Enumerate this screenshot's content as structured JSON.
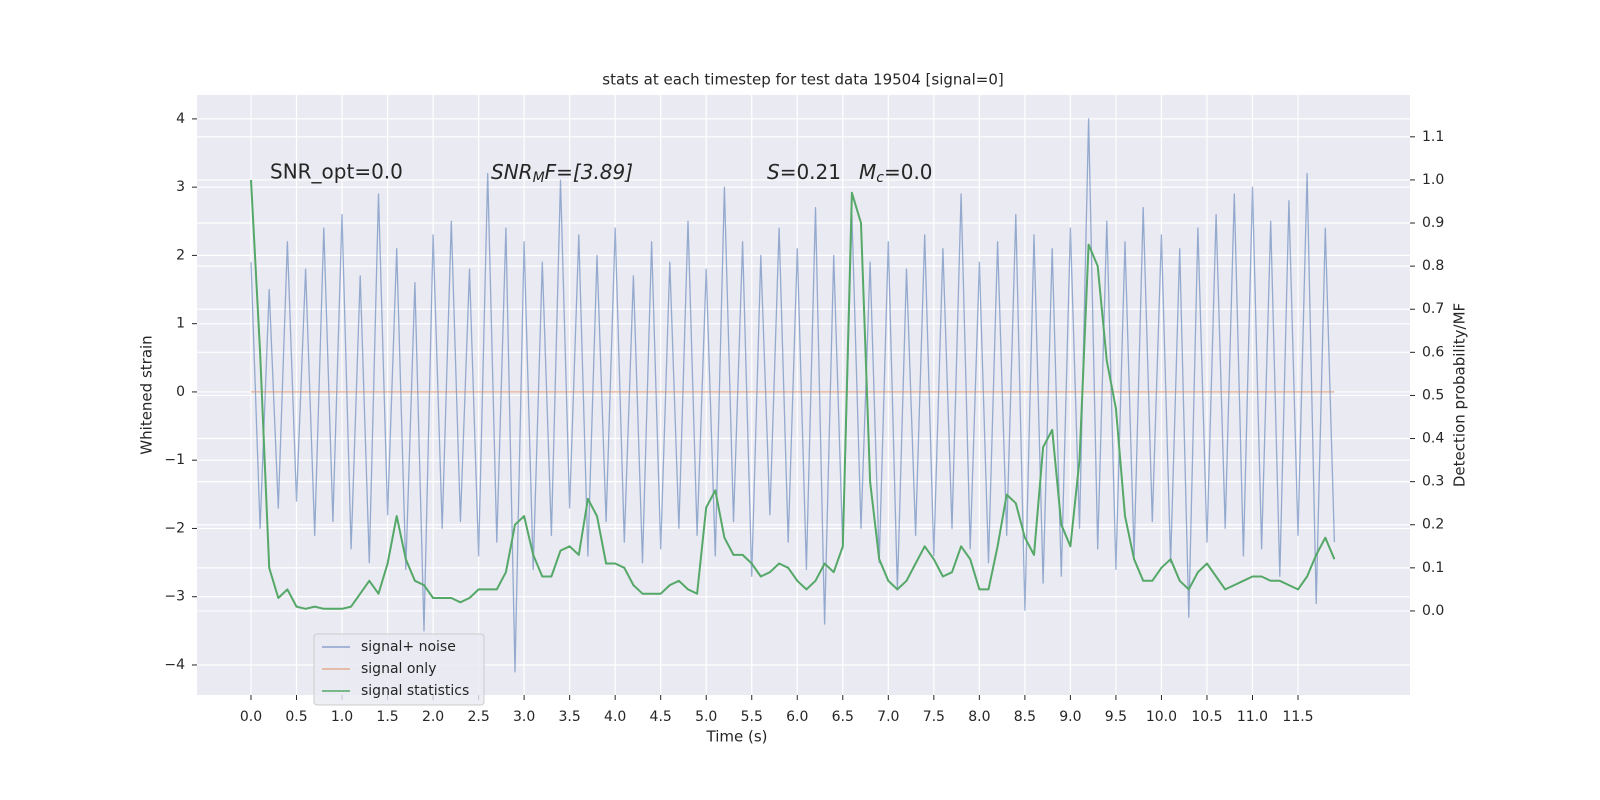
{
  "chart_data": {
    "type": "line",
    "title": "stats at each timestep for test data 19504 [signal=0]",
    "x_label": "Time (s)",
    "y_label": "Whitened strain",
    "y2_label": "Detection probability/MF",
    "annotations": [
      {
        "text": "SNR_opt=0.0"
      },
      {
        "parts": [
          "SNR",
          "M",
          "F=[3.89]"
        ]
      },
      {
        "parts": [
          "S",
          "=0.21"
        ]
      },
      {
        "parts": [
          "M",
          "c",
          "=0.0"
        ]
      }
    ],
    "xlim": [
      -0.593,
      12.73
    ],
    "ylim": [
      -4.44,
      4.35
    ],
    "y2lim": [
      -0.195,
      1.197
    ],
    "xticks": [
      {
        "value": 0,
        "label": "0.0"
      },
      0.5,
      {
        "value": 1,
        "label": "1.0"
      },
      1.5,
      {
        "value": 2,
        "label": "2.0"
      },
      2.5,
      {
        "value": 3,
        "label": "3.0"
      },
      3.5,
      {
        "value": 4,
        "label": "4.0"
      },
      4.5,
      {
        "value": 5,
        "label": "5.0"
      },
      5.5,
      {
        "value": 6,
        "label": "6.0"
      },
      6.5,
      {
        "value": 7,
        "label": "7.0"
      },
      7.5,
      {
        "value": 8,
        "label": "8.0"
      },
      8.5,
      {
        "value": 9,
        "label": "9.0"
      },
      9.5,
      {
        "value": 10,
        "label": "10.0"
      },
      10.5,
      {
        "value": 11,
        "label": "11.0"
      },
      11.5
    ],
    "yticks": [
      {
        "value": -4,
        "label": "−4"
      },
      {
        "value": -3,
        "label": "−3"
      },
      {
        "value": -2,
        "label": "−2"
      },
      {
        "value": -1,
        "label": "−1"
      },
      0,
      1,
      2,
      3,
      4
    ],
    "y2ticks": [
      {
        "value": 0,
        "label": "0.0"
      },
      0.1,
      0.2,
      0.3,
      0.4,
      0.5,
      0.6,
      0.7,
      0.8,
      0.9,
      {
        "value": 1,
        "label": "1.0"
      },
      1.1
    ],
    "grid": true,
    "legend": "lower left",
    "x": [
      0.0,
      0.1,
      0.2,
      0.3,
      0.4,
      0.5,
      0.6,
      0.7,
      0.8,
      0.9,
      1.0,
      1.1,
      1.2,
      1.3,
      1.4,
      1.5,
      1.6,
      1.7,
      1.8,
      1.9,
      2.0,
      2.1,
      2.2,
      2.3,
      2.4,
      2.5,
      2.6,
      2.7,
      2.8,
      2.9,
      3.0,
      3.1,
      3.2,
      3.3,
      3.4,
      3.5,
      3.6,
      3.7,
      3.8,
      3.9,
      4.0,
      4.1,
      4.2,
      4.3,
      4.4,
      4.5,
      4.6,
      4.7,
      4.8,
      4.9,
      5.0,
      5.1,
      5.2,
      5.3,
      5.4,
      5.5,
      5.6,
      5.7,
      5.8,
      5.9,
      6.0,
      6.1,
      6.2,
      6.3,
      6.4,
      6.5,
      6.6,
      6.7,
      6.8,
      6.9,
      7.0,
      7.1,
      7.2,
      7.3,
      7.4,
      7.5,
      7.6,
      7.7,
      7.8,
      7.9,
      8.0,
      8.1,
      8.2,
      8.3,
      8.4,
      8.5,
      8.6,
      8.7,
      8.8,
      8.9,
      9.0,
      9.1,
      9.2,
      9.3,
      9.4,
      9.5,
      9.6,
      9.7,
      9.8,
      9.9,
      10.0,
      10.1,
      10.2,
      10.3,
      10.4,
      10.5,
      10.6,
      10.7,
      10.8,
      10.9,
      11.0,
      11.1,
      11.2,
      11.3,
      11.4,
      11.5,
      11.6,
      11.7,
      11.8,
      11.9
    ],
    "series": [
      {
        "name": "signal+ noise",
        "color": "#4c72b0",
        "values": [
          1.9,
          -2.0,
          1.5,
          -1.7,
          2.2,
          -1.6,
          1.8,
          -2.1,
          2.4,
          -1.9,
          2.6,
          -2.3,
          1.7,
          -2.5,
          2.9,
          -1.8,
          2.1,
          -2.6,
          1.6,
          -3.5,
          2.3,
          -2.0,
          2.5,
          -1.9,
          1.8,
          -2.4,
          3.2,
          -2.2,
          2.4,
          -4.1,
          2.2,
          -2.6,
          1.9,
          -2.1,
          3.1,
          -1.7,
          2.3,
          -2.4,
          2.0,
          -1.9,
          2.4,
          -2.2,
          1.7,
          -2.5,
          2.2,
          -2.3,
          1.9,
          -2.0,
          2.5,
          -2.1,
          1.8,
          -2.4,
          3.0,
          -1.9,
          2.2,
          -2.7,
          2.0,
          -1.8,
          2.4,
          -2.2,
          2.1,
          -2.6,
          2.7,
          -3.4,
          2.0,
          -2.3,
          2.6,
          -2.0,
          1.9,
          -2.5,
          2.2,
          -2.9,
          1.8,
          -2.1,
          2.3,
          -2.4,
          2.1,
          -2.0,
          2.9,
          -2.3,
          1.9,
          -2.5,
          2.2,
          -2.1,
          2.6,
          -3.2,
          2.3,
          -2.8,
          2.1,
          -2.7,
          2.4,
          -2.0,
          4.0,
          -2.3,
          2.5,
          -2.6,
          2.2,
          -2.4,
          2.7,
          -1.9,
          2.3,
          -2.5,
          2.1,
          -3.3,
          2.4,
          -2.2,
          2.6,
          -2.0,
          2.9,
          -2.4,
          3.0,
          -2.3,
          2.5,
          -2.7,
          2.8,
          -2.1,
          3.2,
          -3.1,
          2.4,
          -2.2
        ]
      },
      {
        "name": "signal only",
        "color": "#dd8452",
        "values": [
          0,
          0,
          0,
          0,
          0,
          0,
          0,
          0,
          0,
          0,
          0,
          0,
          0,
          0,
          0,
          0,
          0,
          0,
          0,
          0,
          0,
          0,
          0,
          0,
          0,
          0,
          0,
          0,
          0,
          0,
          0,
          0,
          0,
          0,
          0,
          0,
          0,
          0,
          0,
          0,
          0,
          0,
          0,
          0,
          0,
          0,
          0,
          0,
          0,
          0,
          0,
          0,
          0,
          0,
          0,
          0,
          0,
          0,
          0,
          0,
          0,
          0,
          0,
          0,
          0,
          0,
          0,
          0,
          0,
          0,
          0,
          0,
          0,
          0,
          0,
          0,
          0,
          0,
          0,
          0,
          0,
          0,
          0,
          0,
          0,
          0,
          0,
          0,
          0,
          0,
          0,
          0,
          0,
          0,
          0,
          0,
          0,
          0,
          0,
          0,
          0,
          0,
          0,
          0,
          0,
          0,
          0,
          0,
          0,
          0,
          0,
          0,
          0,
          0,
          0,
          0,
          0,
          0,
          0,
          0
        ]
      },
      {
        "name": "signal statistics",
        "color": "#55a868",
        "axis": "y2",
        "values": [
          1.0,
          0.6,
          0.1,
          0.03,
          0.05,
          0.01,
          0.005,
          0.01,
          0.005,
          0.005,
          0.005,
          0.01,
          0.04,
          0.07,
          0.04,
          0.11,
          0.22,
          0.12,
          0.07,
          0.06,
          0.03,
          0.03,
          0.03,
          0.02,
          0.03,
          0.05,
          0.05,
          0.05,
          0.09,
          0.2,
          0.22,
          0.13,
          0.08,
          0.08,
          0.14,
          0.15,
          0.13,
          0.26,
          0.22,
          0.11,
          0.11,
          0.1,
          0.06,
          0.04,
          0.04,
          0.04,
          0.06,
          0.07,
          0.05,
          0.04,
          0.24,
          0.28,
          0.17,
          0.13,
          0.13,
          0.11,
          0.08,
          0.09,
          0.11,
          0.1,
          0.07,
          0.05,
          0.07,
          0.11,
          0.09,
          0.15,
          0.97,
          0.9,
          0.3,
          0.12,
          0.07,
          0.05,
          0.07,
          0.11,
          0.15,
          0.12,
          0.08,
          0.09,
          0.15,
          0.12,
          0.05,
          0.05,
          0.15,
          0.27,
          0.25,
          0.17,
          0.13,
          0.38,
          0.42,
          0.2,
          0.15,
          0.35,
          0.85,
          0.8,
          0.58,
          0.47,
          0.22,
          0.12,
          0.07,
          0.07,
          0.1,
          0.12,
          0.07,
          0.05,
          0.09,
          0.11,
          0.08,
          0.05,
          0.06,
          0.07,
          0.08,
          0.08,
          0.07,
          0.07,
          0.06,
          0.05,
          0.08,
          0.13,
          0.17,
          0.12
        ]
      }
    ]
  }
}
